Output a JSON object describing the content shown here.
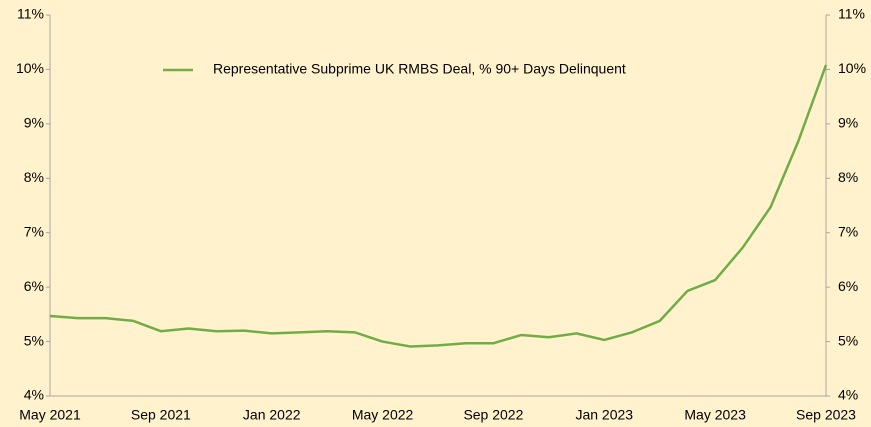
{
  "chart_data": {
    "type": "line",
    "categories": [
      "May 2021",
      null,
      null,
      null,
      "Sep 2021",
      null,
      null,
      null,
      "Jan 2022",
      null,
      null,
      null,
      "May 2022",
      null,
      null,
      null,
      "Sep 2022",
      null,
      null,
      null,
      "Jan 2023",
      null,
      null,
      null,
      "May 2023",
      null,
      null,
      null,
      "Sep 2023"
    ],
    "series": [
      {
        "name": "Representative Subprime UK RMBS Deal, % 90+ Days Delinquent",
        "color": "#70ad47",
        "values": [
          5.47,
          5.43,
          5.43,
          5.38,
          5.19,
          5.24,
          5.19,
          5.2,
          5.15,
          5.17,
          5.19,
          5.17,
          5.0,
          4.91,
          4.93,
          4.97,
          4.97,
          5.12,
          5.08,
          5.15,
          5.03,
          5.17,
          5.38,
          5.93,
          6.13,
          6.73,
          7.47,
          8.68,
          10.08
        ]
      }
    ],
    "ylim": [
      4,
      11
    ],
    "yticks": [
      {
        "value": 4,
        "label": "4%"
      },
      {
        "value": 5,
        "label": "5%"
      },
      {
        "value": 6,
        "label": "6%"
      },
      {
        "value": 7,
        "label": "7%"
      },
      {
        "value": 8,
        "label": "8%"
      },
      {
        "value": 9,
        "label": "9%"
      },
      {
        "value": 10,
        "label": "10%"
      },
      {
        "value": 11,
        "label": "11%"
      }
    ],
    "y2lim": [
      4,
      11
    ],
    "y2ticks": [
      {
        "value": 4,
        "label": "4%"
      },
      {
        "value": 5,
        "label": "5%"
      },
      {
        "value": 6,
        "label": "6%"
      },
      {
        "value": 7,
        "label": "7%"
      },
      {
        "value": 8,
        "label": "8%"
      },
      {
        "value": 9,
        "label": "9%"
      },
      {
        "value": 10,
        "label": "10%"
      },
      {
        "value": 11,
        "label": "11%"
      }
    ],
    "grid": false,
    "legend": "top"
  }
}
